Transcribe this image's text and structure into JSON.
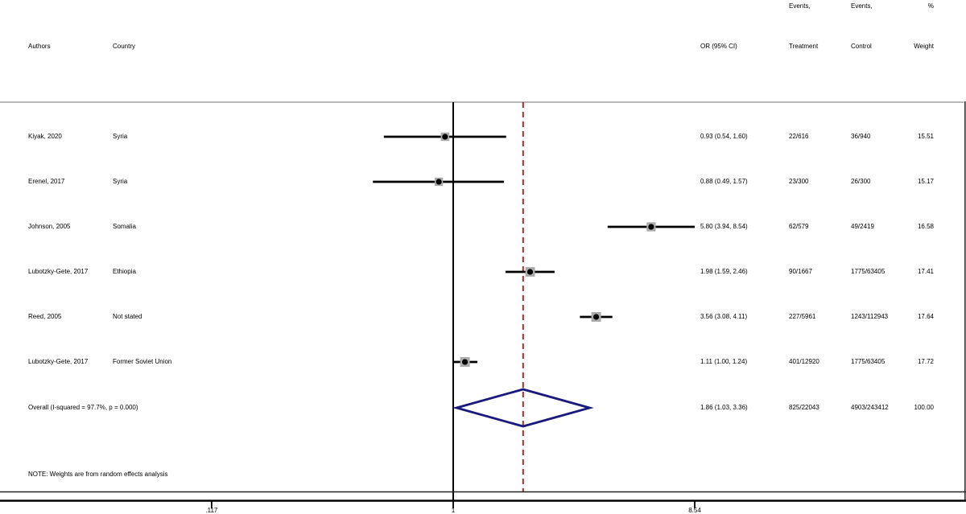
{
  "header": {
    "events_top_treatment": "Events,",
    "events_top_control": "Events,",
    "percent": "%",
    "authors": "Authors",
    "country": "Country",
    "or_ci": "OR (95% CI)",
    "treatment": "Treatment",
    "control": "Control",
    "weight": "Weight"
  },
  "note": "NOTE: Weights are from random effects analysis",
  "colors": {
    "diamond": "#19197e",
    "overall_dashed_line": "#9e3132",
    "weight_box": "#ababab",
    "separator": "#b8b8b8",
    "marker": "#000000",
    "axis": "#000000"
  },
  "chart_data": {
    "type": "forest",
    "effect_measure": "OR",
    "x_axis": {
      "scale": "log",
      "ticks": [
        0.117,
        1,
        8.54
      ],
      "tick_labels": [
        ".117",
        "1",
        "8.54"
      ],
      "null_line": 1.0,
      "overall_dashed_line_at": 1.86
    },
    "studies": [
      {
        "author": "Kiyak, 2020",
        "country": "Syria",
        "or": 0.93,
        "lo": 0.54,
        "hi": 1.6,
        "or_ci": "0.93 (0.54, 1.60)",
        "treatment": "22/616",
        "control": "36/940",
        "weight": 15.51,
        "weight_label": "15.51"
      },
      {
        "author": "Erenel, 2017",
        "country": "Syria",
        "or": 0.88,
        "lo": 0.49,
        "hi": 1.57,
        "or_ci": "0.88 (0.49, 1.57)",
        "treatment": "23/300",
        "control": "26/300",
        "weight": 15.17,
        "weight_label": "15.17"
      },
      {
        "author": "Johnson, 2005",
        "country": "Somalia",
        "or": 5.8,
        "lo": 3.94,
        "hi": 8.54,
        "or_ci": "5.80 (3.94, 8.54)",
        "treatment": "62/579",
        "control": "49/2419",
        "weight": 16.58,
        "weight_label": "16.58"
      },
      {
        "author": "Lubotzky-Gete, 2017",
        "country": "Ethiopia",
        "or": 1.98,
        "lo": 1.59,
        "hi": 2.46,
        "or_ci": "1.98 (1.59, 2.46)",
        "treatment": "90/1667",
        "control": "1775/63405",
        "weight": 17.41,
        "weight_label": "17.41"
      },
      {
        "author": "Reed, 2005",
        "country": "Not stated",
        "or": 3.56,
        "lo": 3.08,
        "hi": 4.11,
        "or_ci": "3.56 (3.08, 4.11)",
        "treatment": "227/5961",
        "control": "1243/112943",
        "weight": 17.64,
        "weight_label": "17.64"
      },
      {
        "author": "Lubotzky-Gete, 2017",
        "country": "Former Soviet Union",
        "or": 1.11,
        "lo": 1.0,
        "hi": 1.24,
        "or_ci": "1.11 (1.00, 1.24)",
        "treatment": "401/12920",
        "control": "1775/63405",
        "weight": 17.72,
        "weight_label": "17.72"
      }
    ],
    "overall": {
      "label": "Overall  (I-squared = 97.7%, p = 0.000)",
      "or": 1.86,
      "lo": 1.03,
      "hi": 3.36,
      "or_ci": "1.86 (1.03, 3.36)",
      "treatment": "825/22043",
      "control": "4903/243412",
      "weight": 100.0,
      "weight_label": "100.00"
    }
  }
}
